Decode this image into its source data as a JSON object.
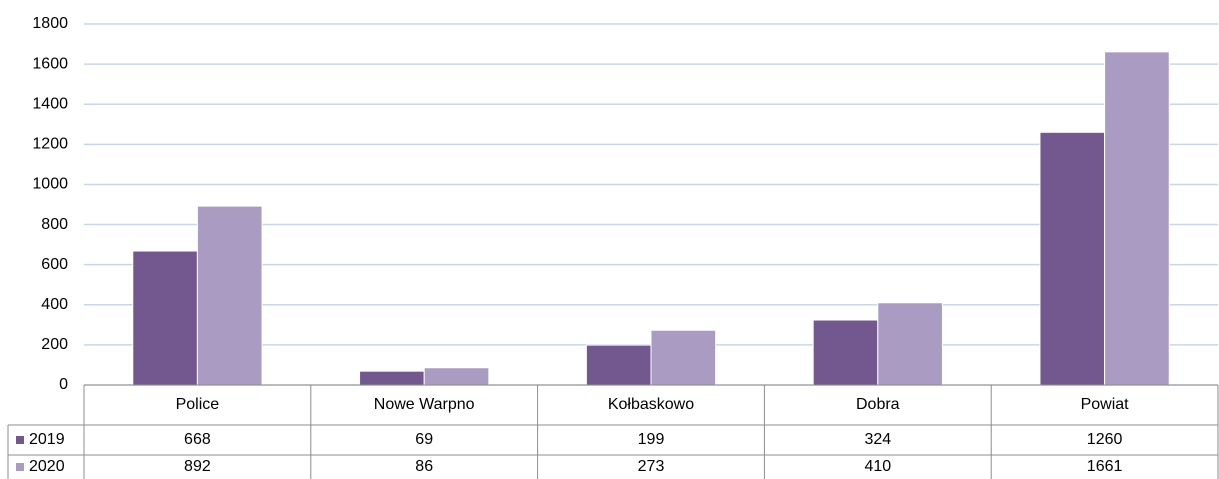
{
  "chart_data": {
    "type": "bar",
    "categories": [
      "Police",
      "Nowe Warpno",
      "Kołbaskowo",
      "Dobra",
      "Powiat"
    ],
    "series": [
      {
        "name": "2019",
        "color": "#72588e",
        "values": [
          668,
          69,
          199,
          324,
          1260
        ]
      },
      {
        "name": "2020",
        "color": "#a99bc1",
        "values": [
          892,
          86,
          273,
          410,
          1661
        ]
      }
    ],
    "ylim": [
      0,
      1800
    ],
    "yticks": [
      0,
      200,
      400,
      600,
      800,
      1000,
      1200,
      1400,
      1600,
      1800
    ],
    "grid": true
  }
}
